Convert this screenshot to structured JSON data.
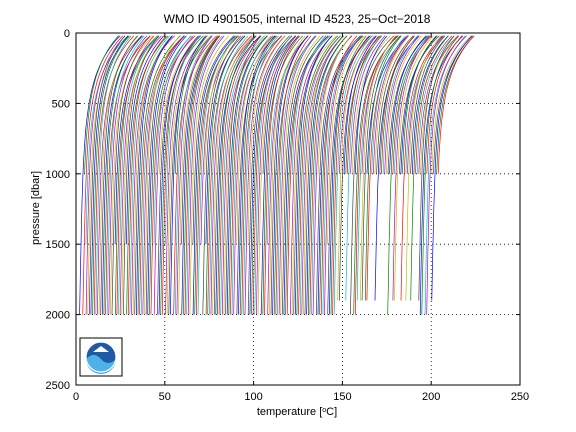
{
  "chart_data": {
    "type": "line",
    "title": "WMO ID 4901505, internal ID 4523, 25−Oct−2018",
    "xlabel_prefix": "temperature [",
    "xlabel_sup": "o",
    "xlabel_suffix": "C]",
    "ylabel": "pressure [dbar]",
    "xlim": [
      0,
      250
    ],
    "ylim": [
      0,
      2500
    ],
    "y_reversed": true,
    "grid": true,
    "grid_style": "dotted",
    "xticks": [
      0,
      50,
      100,
      150,
      200,
      250
    ],
    "yticks": [
      0,
      500,
      1000,
      1500,
      2000,
      2500
    ],
    "series_colors": [
      "#0000ff",
      "#008000",
      "#ff0000",
      "#00bfbf",
      "#bf00bf",
      "#bfbf00",
      "#404040"
    ],
    "profiles_summary": {
      "x_offset_range": [
        5,
        230
      ],
      "surface_pressure": 20,
      "max_pressure_typical": 2000,
      "max_pressure_short": 1000,
      "mid_pressure_short": 1500,
      "count_estimate": 220
    },
    "logo": "noaa-logo"
  }
}
